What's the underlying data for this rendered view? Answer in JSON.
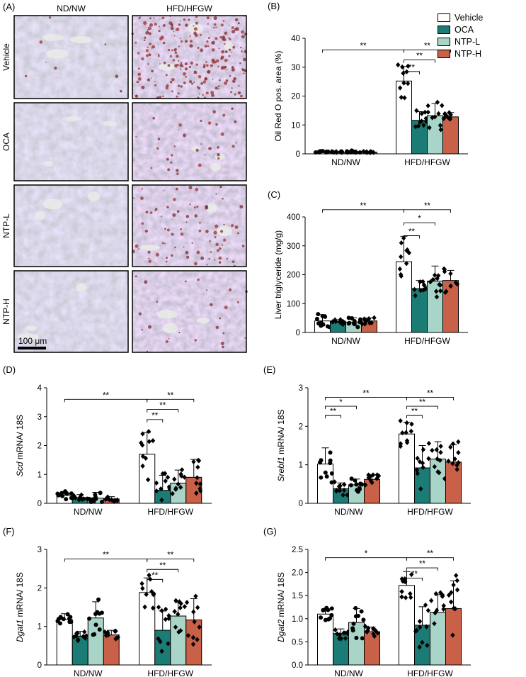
{
  "colors": {
    "Vehicle": "#ffffff",
    "OCA": "#1b7b75",
    "NTP-L": "#a8d5c8",
    "NTP-H": "#c96148"
  },
  "legend": [
    "Vehicle",
    "OCA",
    "NTP-L",
    "NTP-H"
  ],
  "micrographs": {
    "label": "(A)",
    "col_labels": [
      "ND/NW",
      "HFD/HFGW"
    ],
    "row_labels": [
      "Vehicle",
      "OCA",
      "NTP-L",
      "NTP-H"
    ],
    "scale_bar": "100 μm",
    "red_staining_density": [
      [
        0.02,
        0.55
      ],
      [
        0.0,
        0.08
      ],
      [
        0.0,
        0.2
      ],
      [
        0.0,
        0.06
      ]
    ]
  },
  "chart_data": [
    {
      "panel": "(B)",
      "type": "bar",
      "ylabel": "Oil Red O pos. area (%)",
      "groups": [
        "ND/NW",
        "HFD/HFGW"
      ],
      "ylim": [
        0,
        40
      ],
      "yticks": [
        0,
        10,
        20,
        30,
        40
      ],
      "series": [
        {
          "name": "Vehicle",
          "values": [
            0.6,
            25.2
          ],
          "err": [
            0.3,
            5
          ]
        },
        {
          "name": "OCA",
          "values": [
            0.5,
            11.6
          ],
          "err": [
            0.3,
            3
          ]
        },
        {
          "name": "NTP-L",
          "values": [
            0.8,
            13.2
          ],
          "err": [
            0.5,
            4.2
          ]
        },
        {
          "name": "NTP-H",
          "values": [
            0.6,
            12.8
          ],
          "err": [
            0.3,
            1.5
          ]
        }
      ],
      "sig": [
        {
          "label": "**",
          "from": [
            0,
            0
          ],
          "to": [
            1,
            0
          ],
          "y": 36
        },
        {
          "label": "**",
          "from": [
            1,
            0
          ],
          "to": [
            1,
            3
          ],
          "y": 36
        },
        {
          "label": "**",
          "from": [
            1,
            0
          ],
          "to": [
            1,
            2
          ],
          "y": 32.5
        },
        {
          "label": "**",
          "from": [
            1,
            0
          ],
          "to": [
            1,
            1
          ],
          "y": 28.5
        }
      ]
    },
    {
      "panel": "(C)",
      "type": "bar",
      "ylabel": "Liver triglyceride (mg/g)",
      "groups": [
        "ND/NW",
        "HFD/HFGW"
      ],
      "ylim": [
        0,
        400
      ],
      "yticks": [
        0,
        100,
        200,
        300,
        400
      ],
      "series": [
        {
          "name": "Vehicle",
          "values": [
            40,
            245
          ],
          "err": [
            22,
            88
          ]
        },
        {
          "name": "OCA",
          "values": [
            36,
            152
          ],
          "err": [
            8,
            28
          ]
        },
        {
          "name": "NTP-L",
          "values": [
            36,
            178
          ],
          "err": [
            15,
            52
          ]
        },
        {
          "name": "NTP-H",
          "values": [
            40,
            180
          ],
          "err": [
            10,
            35
          ]
        }
      ],
      "sig": [
        {
          "label": "**",
          "from": [
            0,
            0
          ],
          "to": [
            1,
            0
          ],
          "y": 425
        },
        {
          "label": "**",
          "from": [
            1,
            0
          ],
          "to": [
            1,
            3
          ],
          "y": 425
        },
        {
          "label": "*",
          "from": [
            1,
            0
          ],
          "to": [
            1,
            2
          ],
          "y": 380
        },
        {
          "label": "**",
          "from": [
            1,
            0
          ],
          "to": [
            1,
            1
          ],
          "y": 335
        }
      ]
    },
    {
      "panel": "(D)",
      "type": "bar",
      "ylabel_italic": "Scd",
      "ylabel_rest": " mRNA/ 18S",
      "groups": [
        "ND/NW",
        "HFD/HFGW"
      ],
      "ylim": [
        0,
        4
      ],
      "yticks": [
        0,
        1,
        2,
        3,
        4
      ],
      "series": [
        {
          "name": "Vehicle",
          "values": [
            0.28,
            1.7
          ],
          "err": [
            0.12,
            0.75
          ]
        },
        {
          "name": "OCA",
          "values": [
            0.2,
            0.45
          ],
          "err": [
            0.1,
            0.52
          ]
        },
        {
          "name": "NTP-L",
          "values": [
            0.18,
            0.7
          ],
          "err": [
            0.2,
            0.45
          ]
        },
        {
          "name": "NTP-H",
          "values": [
            0.15,
            0.9
          ],
          "err": [
            0.08,
            0.62
          ]
        }
      ],
      "sig": [
        {
          "label": "**",
          "from": [
            0,
            0
          ],
          "to": [
            1,
            0
          ],
          "y": 3.6
        },
        {
          "label": "**",
          "from": [
            1,
            0
          ],
          "to": [
            1,
            3
          ],
          "y": 3.6
        },
        {
          "label": "**",
          "from": [
            1,
            0
          ],
          "to": [
            1,
            2
          ],
          "y": 3.25
        },
        {
          "label": "**",
          "from": [
            1,
            0
          ],
          "to": [
            1,
            1
          ],
          "y": 2.9
        }
      ]
    },
    {
      "panel": "(E)",
      "type": "bar",
      "ylabel_italic": "Srebf1",
      "ylabel_rest": " mRNA/ 18S",
      "groups": [
        "ND/NW",
        "HFD/HFGW"
      ],
      "ylim": [
        0,
        3
      ],
      "yticks": [
        0,
        1,
        2,
        3
      ],
      "series": [
        {
          "name": "Vehicle",
          "values": [
            1.02,
            1.8
          ],
          "err": [
            0.42,
            0.3
          ]
        },
        {
          "name": "OCA",
          "values": [
            0.38,
            0.92
          ],
          "err": [
            0.15,
            0.58
          ]
        },
        {
          "name": "NTP-L",
          "values": [
            0.48,
            1.15
          ],
          "err": [
            0.15,
            0.45
          ]
        },
        {
          "name": "NTP-H",
          "values": [
            0.62,
            1.07
          ],
          "err": [
            0.12,
            0.45
          ]
        }
      ],
      "sig": [
        {
          "label": "**",
          "from": [
            0,
            0
          ],
          "to": [
            1,
            0
          ],
          "y": 2.75
        },
        {
          "label": "**",
          "from": [
            1,
            0
          ],
          "to": [
            1,
            3
          ],
          "y": 2.75
        },
        {
          "label": "*",
          "from": [
            0,
            0
          ],
          "to": [
            0,
            2
          ],
          "y": 2.52
        },
        {
          "label": "**",
          "from": [
            1,
            0
          ],
          "to": [
            1,
            2
          ],
          "y": 2.52
        },
        {
          "label": "**",
          "from": [
            0,
            0
          ],
          "to": [
            0,
            1
          ],
          "y": 2.28
        },
        {
          "label": "**",
          "from": [
            1,
            0
          ],
          "to": [
            1,
            1
          ],
          "y": 2.28
        }
      ]
    },
    {
      "panel": "(F)",
      "type": "bar",
      "ylabel_italic": "Dgat1",
      "ylabel_rest": " mRNA/ 18S",
      "groups": [
        "ND/NW",
        "HFD/HFGW"
      ],
      "ylim": [
        0,
        3
      ],
      "yticks": [
        0,
        1,
        2,
        3
      ],
      "series": [
        {
          "name": "Vehicle",
          "values": [
            1.18,
            1.88
          ],
          "err": [
            0.15,
            0.38
          ]
        },
        {
          "name": "OCA",
          "values": [
            0.75,
            0.9
          ],
          "err": [
            0.12,
            0.5
          ]
        },
        {
          "name": "NTP-L",
          "values": [
            1.22,
            1.27
          ],
          "err": [
            0.42,
            0.35
          ]
        },
        {
          "name": "NTP-H",
          "values": [
            0.78,
            1.17
          ],
          "err": [
            0.12,
            0.55
          ]
        }
      ],
      "sig": [
        {
          "label": "**",
          "from": [
            0,
            0
          ],
          "to": [
            1,
            0
          ],
          "y": 2.75
        },
        {
          "label": "**",
          "from": [
            1,
            0
          ],
          "to": [
            1,
            3
          ],
          "y": 2.75
        },
        {
          "label": "**",
          "from": [
            1,
            0
          ],
          "to": [
            1,
            2
          ],
          "y": 2.48
        },
        {
          "label": "**",
          "from": [
            1,
            0
          ],
          "to": [
            1,
            1
          ],
          "y": 2.22
        }
      ]
    },
    {
      "panel": "(G)",
      "type": "bar",
      "ylabel_italic": "Dgat2",
      "ylabel_rest": " mRNA/ 18S",
      "groups": [
        "ND/NW",
        "HFD/HFGW"
      ],
      "ylim": [
        0,
        2.5
      ],
      "yticks": [
        0,
        0.5,
        1.0,
        1.5,
        2.0,
        2.5
      ],
      "series": [
        {
          "name": "Vehicle",
          "values": [
            1.1,
            1.72
          ],
          "err": [
            0.12,
            0.3
          ]
        },
        {
          "name": "OCA",
          "values": [
            0.68,
            0.86
          ],
          "err": [
            0.1,
            0.4
          ]
        },
        {
          "name": "NTP-L",
          "values": [
            0.92,
            1.14
          ],
          "err": [
            0.3,
            0.38
          ]
        },
        {
          "name": "NTP-H",
          "values": [
            0.72,
            1.22
          ],
          "err": [
            0.1,
            0.6
          ]
        }
      ],
      "sig": [
        {
          "label": "*",
          "from": [
            0,
            0
          ],
          "to": [
            1,
            0
          ],
          "y": 2.32
        },
        {
          "label": "**",
          "from": [
            1,
            0
          ],
          "to": [
            1,
            3
          ],
          "y": 2.32
        },
        {
          "label": "**",
          "from": [
            1,
            0
          ],
          "to": [
            1,
            2
          ],
          "y": 2.1
        },
        {
          "label": "**",
          "from": [
            1,
            0
          ],
          "to": [
            1,
            1
          ],
          "y": 1.88
        }
      ]
    }
  ]
}
